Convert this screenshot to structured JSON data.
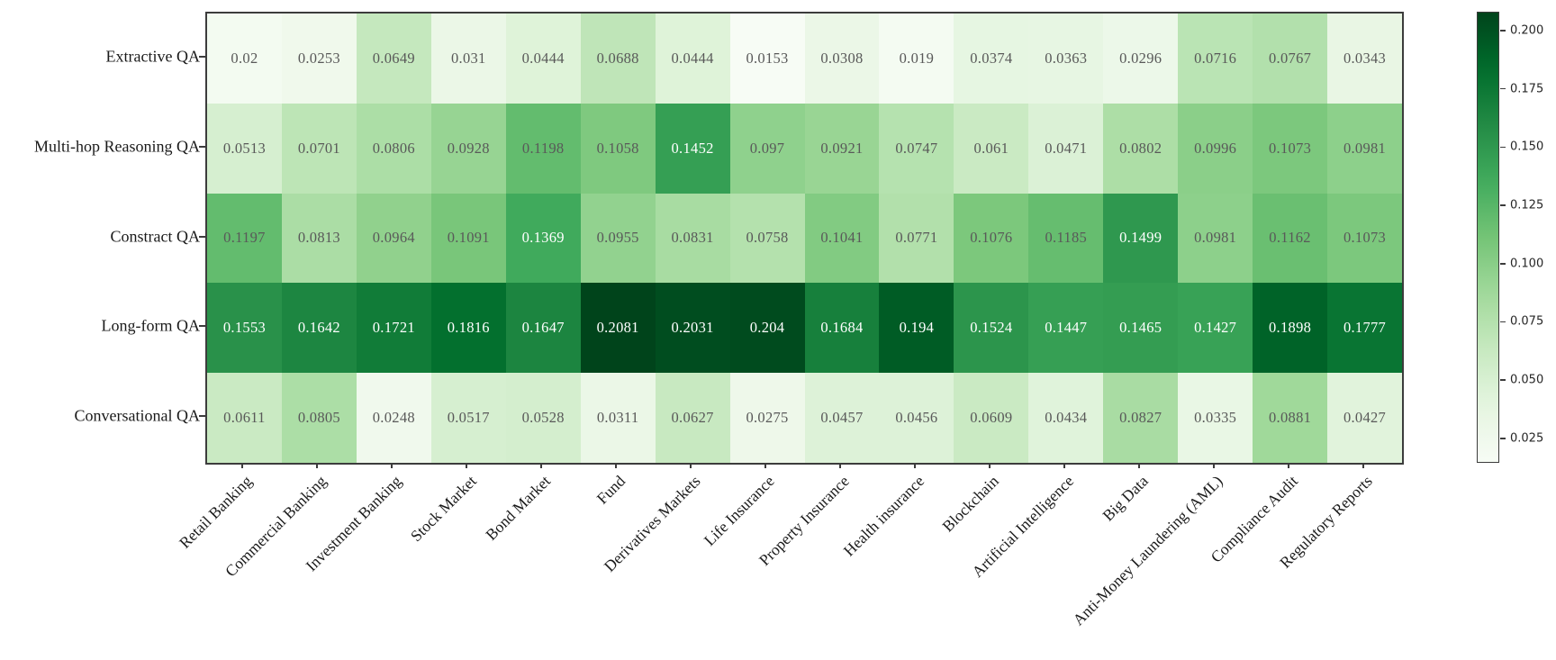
{
  "chart_data": {
    "type": "heatmap",
    "title": "",
    "xlabel": "",
    "ylabel": "",
    "colormap": "Greens",
    "vmin": 0.0153,
    "vmax": 0.2081,
    "legend_position": "right-colorbar",
    "rows": [
      "Extractive QA",
      "Multi-hop Reasoning QA",
      "Constract QA",
      "Long-form QA",
      "Conversational QA"
    ],
    "columns": [
      "Retail Banking",
      "Commercial Banking",
      "Investment Banking",
      "Stock Market",
      "Bond Market",
      "Fund",
      "Derivatives Markets",
      "Life Insurance",
      "Property Insurance",
      "Health insurance",
      "Blockchain",
      "Artificial Intelligence",
      "Big Data",
      "Anti-Money Laundering (AML)",
      "Compliance Audit",
      "Regulatory Reports"
    ],
    "values": [
      [
        "0.02",
        "0.0253",
        "0.0649",
        "0.031",
        "0.0444",
        "0.0688",
        "0.0444",
        "0.0153",
        "0.0308",
        "0.019",
        "0.0374",
        "0.0363",
        "0.0296",
        "0.0716",
        "0.0767",
        "0.0343"
      ],
      [
        "0.0513",
        "0.0701",
        "0.0806",
        "0.0928",
        "0.1198",
        "0.1058",
        "0.1452",
        "0.097",
        "0.0921",
        "0.0747",
        "0.061",
        "0.0471",
        "0.0802",
        "0.0996",
        "0.1073",
        "0.0981"
      ],
      [
        "0.1197",
        "0.0813",
        "0.0964",
        "0.1091",
        "0.1369",
        "0.0955",
        "0.0831",
        "0.0758",
        "0.1041",
        "0.0771",
        "0.1076",
        "0.1185",
        "0.1499",
        "0.0981",
        "0.1162",
        "0.1073"
      ],
      [
        "0.1553",
        "0.1642",
        "0.1721",
        "0.1816",
        "0.1647",
        "0.2081",
        "0.2031",
        "0.204",
        "0.1684",
        "0.194",
        "0.1524",
        "0.1447",
        "0.1465",
        "0.1427",
        "0.1898",
        "0.1777"
      ],
      [
        "0.0611",
        "0.0805",
        "0.0248",
        "0.0517",
        "0.0528",
        "0.0311",
        "0.0627",
        "0.0275",
        "0.0457",
        "0.0456",
        "0.0609",
        "0.0434",
        "0.0827",
        "0.0335",
        "0.0881",
        "0.0427"
      ]
    ],
    "colorbar_ticks": [
      {
        "label": "0.200",
        "value": 0.2
      },
      {
        "label": "0.175",
        "value": 0.175
      },
      {
        "label": "0.150",
        "value": 0.15
      },
      {
        "label": "0.125",
        "value": 0.125
      },
      {
        "label": "0.100",
        "value": 0.1
      },
      {
        "label": "0.075",
        "value": 0.075
      },
      {
        "label": "0.050",
        "value": 0.05
      },
      {
        "label": "0.025",
        "value": 0.025
      }
    ],
    "colors": {
      "background": "#ffffff",
      "spine": "#3c3c3c",
      "cell_text_on_light": "#595959",
      "cell_text_on_dark": "#ffffff",
      "axis_label_text": "#1a1a1a",
      "colormap_darkest": "#00441b",
      "colormap_lightest": "#f7fcf5"
    }
  }
}
